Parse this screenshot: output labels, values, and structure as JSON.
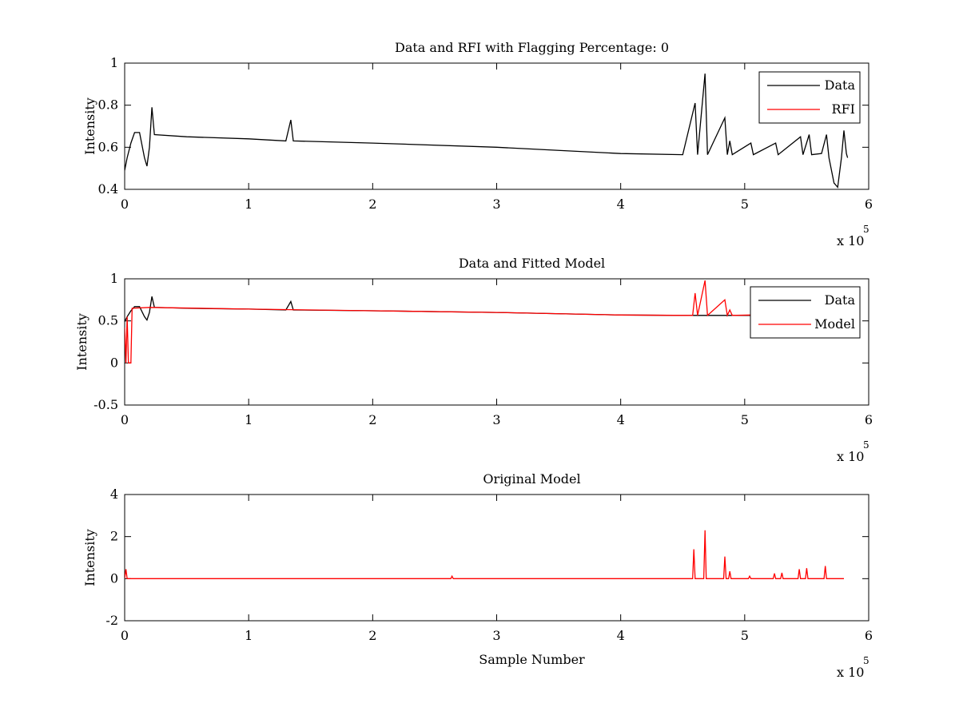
{
  "chart_data": [
    {
      "id": "top",
      "type": "line",
      "title": "Data and RFI with Flagging Percentage: 0",
      "xlabel": "",
      "ylabel": "Intensity",
      "xlim": [
        0,
        600000
      ],
      "ylim": [
        0.4,
        1.0
      ],
      "x_ticks": [
        0,
        1,
        2,
        3,
        4,
        5,
        6
      ],
      "x_tick_labels": [
        "0",
        "1",
        "2",
        "3",
        "4",
        "5",
        "6"
      ],
      "y_ticks": [
        0.4,
        0.6,
        0.8,
        1.0
      ],
      "y_tick_labels": [
        "0.4",
        "0.6",
        "0.8",
        "1"
      ],
      "x_exponent": {
        "base": "x 10",
        "power": "5"
      },
      "legend": {
        "position": "top-right",
        "entries": [
          "Data",
          "RFI"
        ]
      },
      "series": [
        {
          "name": "Data",
          "color": "#000000",
          "points": [
            [
              0,
              0.49
            ],
            [
              2000,
              0.55
            ],
            [
              5000,
              0.62
            ],
            [
              8000,
              0.67
            ],
            [
              12000,
              0.67
            ],
            [
              16000,
              0.55
            ],
            [
              18000,
              0.51
            ],
            [
              20000,
              0.6
            ],
            [
              22000,
              0.79
            ],
            [
              24000,
              0.66
            ],
            [
              50000,
              0.65
            ],
            [
              100000,
              0.64
            ],
            [
              130000,
              0.63
            ],
            [
              134000,
              0.73
            ],
            [
              136000,
              0.63
            ],
            [
              200000,
              0.62
            ],
            [
              300000,
              0.6
            ],
            [
              400000,
              0.57
            ],
            [
              450000,
              0.565
            ],
            [
              460000,
              0.81
            ],
            [
              462000,
              0.565
            ],
            [
              468000,
              0.95
            ],
            [
              470000,
              0.565
            ],
            [
              484000,
              0.74
            ],
            [
              486000,
              0.565
            ],
            [
              488000,
              0.63
            ],
            [
              490000,
              0.565
            ],
            [
              505000,
              0.62
            ],
            [
              507000,
              0.565
            ],
            [
              525000,
              0.62
            ],
            [
              527000,
              0.565
            ],
            [
              545000,
              0.65
            ],
            [
              547000,
              0.565
            ],
            [
              552000,
              0.66
            ],
            [
              554000,
              0.565
            ],
            [
              562000,
              0.57
            ],
            [
              566000,
              0.66
            ],
            [
              568000,
              0.55
            ],
            [
              572000,
              0.43
            ],
            [
              575000,
              0.41
            ],
            [
              578000,
              0.55
            ],
            [
              580000,
              0.68
            ],
            [
              582000,
              0.57
            ],
            [
              583000,
              0.55
            ]
          ]
        },
        {
          "name": "RFI",
          "color": "#ff0000",
          "points": []
        }
      ]
    },
    {
      "id": "middle",
      "type": "line",
      "title": "Data and Fitted Model",
      "xlabel": "",
      "ylabel": "Intensity",
      "xlim": [
        0,
        600000
      ],
      "ylim": [
        -0.5,
        1.0
      ],
      "x_ticks": [
        0,
        1,
        2,
        3,
        4,
        5,
        6
      ],
      "x_tick_labels": [
        "0",
        "1",
        "2",
        "3",
        "4",
        "5",
        "6"
      ],
      "y_ticks": [
        -0.5,
        0,
        0.5,
        1.0
      ],
      "y_tick_labels": [
        "-0.5",
        "0",
        "0.5",
        "1"
      ],
      "x_exponent": {
        "base": "x 10",
        "power": "5"
      },
      "legend": {
        "position": "top-right",
        "entries": [
          "Data",
          "Model"
        ]
      },
      "series": [
        {
          "name": "Data",
          "color": "#000000",
          "points": [
            [
              0,
              0.49
            ],
            [
              2000,
              0.55
            ],
            [
              5000,
              0.62
            ],
            [
              8000,
              0.67
            ],
            [
              12000,
              0.67
            ],
            [
              16000,
              0.55
            ],
            [
              18000,
              0.51
            ],
            [
              20000,
              0.6
            ],
            [
              22000,
              0.79
            ],
            [
              24000,
              0.66
            ],
            [
              50000,
              0.65
            ],
            [
              100000,
              0.64
            ],
            [
              130000,
              0.63
            ],
            [
              134000,
              0.73
            ],
            [
              136000,
              0.63
            ],
            [
              200000,
              0.62
            ],
            [
              300000,
              0.6
            ],
            [
              400000,
              0.57
            ],
            [
              450000,
              0.565
            ],
            [
              505000,
              0.565
            ]
          ]
        },
        {
          "name": "Model",
          "color": "#ff0000",
          "points": [
            [
              0,
              0.42
            ],
            [
              1000,
              0.0
            ],
            [
              2000,
              0.55
            ],
            [
              3000,
              0.0
            ],
            [
              5000,
              0.0
            ],
            [
              6000,
              0.65
            ],
            [
              20000,
              0.66
            ],
            [
              100000,
              0.64
            ],
            [
              200000,
              0.62
            ],
            [
              300000,
              0.6
            ],
            [
              400000,
              0.57
            ],
            [
              458000,
              0.565
            ],
            [
              460000,
              0.83
            ],
            [
              462000,
              0.565
            ],
            [
              468000,
              0.98
            ],
            [
              470000,
              0.565
            ],
            [
              484000,
              0.75
            ],
            [
              486000,
              0.565
            ],
            [
              488000,
              0.63
            ],
            [
              490000,
              0.565
            ],
            [
              505000,
              0.57
            ]
          ]
        }
      ]
    },
    {
      "id": "bottom",
      "type": "line",
      "title": "Original Model",
      "xlabel": "Sample Number",
      "ylabel": "Intensity",
      "xlim": [
        0,
        600000
      ],
      "ylim": [
        -2,
        4
      ],
      "x_ticks": [
        0,
        1,
        2,
        3,
        4,
        5,
        6
      ],
      "x_tick_labels": [
        "0",
        "1",
        "2",
        "3",
        "4",
        "5",
        "6"
      ],
      "y_ticks": [
        -2,
        0,
        2,
        4
      ],
      "y_tick_labels": [
        "-2",
        "0",
        "2",
        "4"
      ],
      "x_exponent": {
        "base": "x 10",
        "power": "5"
      },
      "legend": null,
      "series": [
        {
          "name": "Model",
          "color": "#ff0000",
          "points": [
            [
              0,
              0.0
            ],
            [
              1000,
              0.45
            ],
            [
              2000,
              0.0
            ],
            [
              263000,
              0.0
            ],
            [
              264000,
              0.12
            ],
            [
              265000,
              0.0
            ],
            [
              458000,
              0.0
            ],
            [
              459000,
              1.4
            ],
            [
              460000,
              0.0
            ],
            [
              467000,
              0.0
            ],
            [
              468000,
              2.3
            ],
            [
              469000,
              0.0
            ],
            [
              483000,
              0.0
            ],
            [
              484000,
              1.05
            ],
            [
              485000,
              0.0
            ],
            [
              487000,
              0.0
            ],
            [
              488000,
              0.35
            ],
            [
              489000,
              0.0
            ],
            [
              503000,
              0.0
            ],
            [
              504000,
              0.12
            ],
            [
              505000,
              0.0
            ],
            [
              523000,
              0.0
            ],
            [
              524000,
              0.25
            ],
            [
              525000,
              0.0
            ],
            [
              529000,
              0.0
            ],
            [
              530000,
              0.28
            ],
            [
              531000,
              0.0
            ],
            [
              543000,
              0.0
            ],
            [
              544000,
              0.45
            ],
            [
              545000,
              0.0
            ],
            [
              549000,
              0.0
            ],
            [
              550000,
              0.5
            ],
            [
              551000,
              0.0
            ],
            [
              564000,
              0.0
            ],
            [
              565000,
              0.6
            ],
            [
              566000,
              0.0
            ],
            [
              580000,
              0.0
            ]
          ]
        }
      ]
    }
  ]
}
